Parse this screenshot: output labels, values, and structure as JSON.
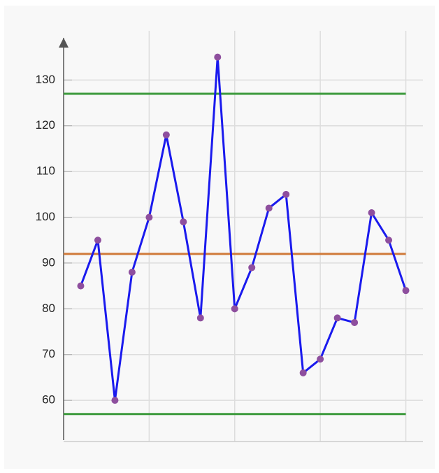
{
  "chart_data": {
    "type": "line",
    "x": [
      1,
      2,
      3,
      4,
      5,
      6,
      7,
      8,
      9,
      10,
      11,
      12,
      13,
      14,
      15,
      16,
      17,
      18,
      19,
      20
    ],
    "series": [
      {
        "color": "#1a1aee",
        "marker_color": "#8e4f9e",
        "values": [
          85,
          95,
          60,
          88,
          100,
          118,
          99,
          78,
          135,
          80,
          89,
          102,
          105,
          66,
          69,
          78,
          77,
          101,
          95,
          84
        ]
      }
    ],
    "upper_limit": 127,
    "upper_limit_color": "#3c9a3c",
    "center_line": 92,
    "center_line_color": "#d07a3a",
    "lower_limit": 57,
    "lower_limit_color": "#3c9a3c",
    "xlim": [
      0,
      21
    ],
    "xticks": [
      5,
      10,
      15,
      20
    ],
    "ylim": [
      51,
      138
    ],
    "yticks": [
      60,
      70,
      80,
      90,
      100,
      110,
      120,
      130
    ],
    "grid": true
  }
}
